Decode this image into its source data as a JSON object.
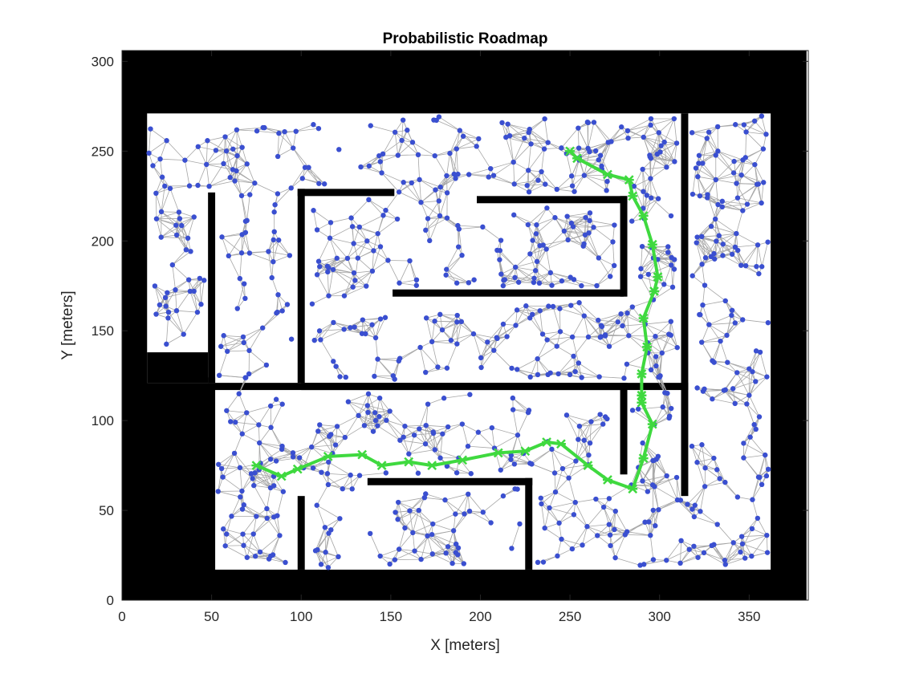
{
  "chart_data": {
    "type": "scatter",
    "title": "Probabilistic Roadmap",
    "xlabel": "X [meters]",
    "ylabel": "Y [meters]",
    "xlim": [
      0,
      383
    ],
    "ylim": [
      0,
      306
    ],
    "xticks": [
      0,
      50,
      100,
      150,
      200,
      250,
      300,
      350
    ],
    "yticks": [
      0,
      50,
      100,
      150,
      200,
      250,
      300
    ],
    "grid": false,
    "colors": {
      "obstacle": "#000000",
      "free_space": "#ffffff",
      "node": "#3a4fd0",
      "edge": "#a6a6a6",
      "path": "#3fd93f"
    },
    "map_extent": {
      "x": [
        0,
        382
      ],
      "y": [
        0,
        306
      ]
    },
    "free_regions": [
      {
        "x": [
          14,
          356
        ],
        "y": [
          121,
          271
        ]
      },
      {
        "x": [
          316,
          362
        ],
        "y": [
          17,
          271
        ]
      },
      {
        "x": [
          52,
          360
        ],
        "y": [
          17,
          117
        ]
      }
    ],
    "walls": [
      {
        "x": [
          14,
          48
        ],
        "y": [
          121,
          138
        ]
      },
      {
        "x": [
          48,
          52
        ],
        "y": [
          121,
          227
        ]
      },
      {
        "x": [
          48,
          52
        ],
        "y": [
          121,
          124
        ]
      },
      {
        "x": [
          98,
          102
        ],
        "y": [
          121,
          229
        ]
      },
      {
        "x": [
          98,
          152
        ],
        "y": [
          225,
          229
        ]
      },
      {
        "x": [
          198,
          282
        ],
        "y": [
          221,
          225
        ]
      },
      {
        "x": [
          278,
          282
        ],
        "y": [
          169,
          225
        ]
      },
      {
        "x": [
          151,
          280
        ],
        "y": [
          169,
          173
        ]
      },
      {
        "x": [
          100,
          282
        ],
        "y": [
          117,
          121
        ]
      },
      {
        "x": [
          278,
          282
        ],
        "y": [
          70,
          121
        ]
      },
      {
        "x": [
          312,
          316
        ],
        "y": [
          58,
          271
        ]
      },
      {
        "x": [
          98,
          102
        ],
        "y": [
          17,
          58
        ]
      },
      {
        "x": [
          137,
          229
        ],
        "y": [
          64,
          68
        ]
      },
      {
        "x": [
          225,
          229
        ],
        "y": [
          17,
          68
        ]
      }
    ],
    "path": {
      "x": [
        250,
        254,
        271,
        283,
        285,
        291,
        296,
        299,
        297,
        291,
        293,
        290,
        290,
        290,
        296,
        291,
        285,
        271,
        260,
        245,
        237,
        225,
        210,
        190,
        173,
        160,
        145,
        134,
        115,
        98,
        89,
        75
      ],
      "y": [
        250,
        246,
        237,
        234,
        225,
        214,
        198,
        180,
        172,
        157,
        141,
        126,
        114,
        110,
        98,
        79,
        62,
        67,
        75,
        87,
        88,
        83,
        82,
        78,
        75,
        77,
        75,
        81,
        80,
        73,
        69,
        75
      ]
    },
    "node_count": 880,
    "node_seed": 7
  }
}
